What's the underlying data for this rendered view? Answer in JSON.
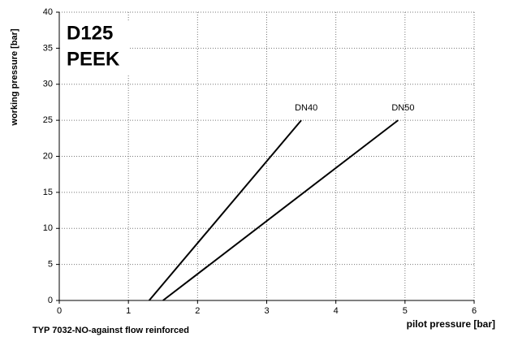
{
  "chart_data": {
    "type": "line",
    "title": [
      "D125",
      "PEEK"
    ],
    "xlabel": "pilot pressure [bar]",
    "ylabel": "working pressure [bar]",
    "caption": "TYP 7032-NO-against flow reinforced",
    "xlim": [
      0,
      6
    ],
    "xticks": [
      0,
      1,
      2,
      3,
      4,
      5,
      6
    ],
    "ylim": [
      0,
      40
    ],
    "yticks": [
      0,
      5,
      10,
      15,
      20,
      25,
      30,
      35,
      40
    ],
    "grid": true,
    "series": [
      {
        "name": "DN40",
        "color": "#000000",
        "x": [
          1.3,
          3.5
        ],
        "values": [
          0,
          25
        ]
      },
      {
        "name": "DN50",
        "color": "#000000",
        "x": [
          1.5,
          4.9
        ],
        "values": [
          0,
          25
        ]
      }
    ]
  }
}
